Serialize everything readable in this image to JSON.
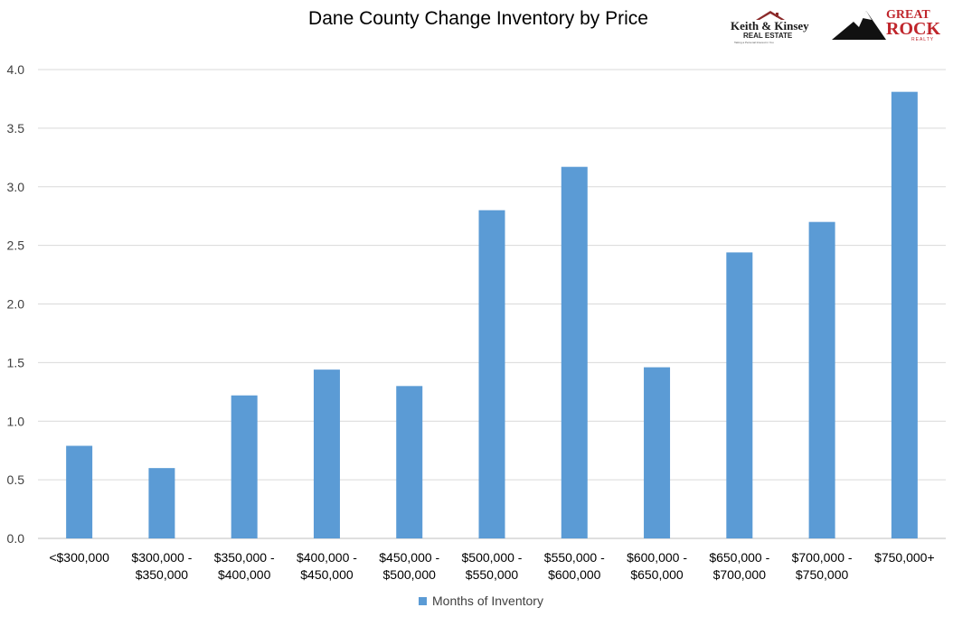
{
  "chart_data": {
    "type": "bar",
    "title": "Dane County Change Inventory by Price",
    "xlabel": "",
    "ylabel": "",
    "categories": [
      [
        "<$300,000"
      ],
      [
        "$300,000 -",
        "$350,000"
      ],
      [
        "$350,000 -",
        "$400,000"
      ],
      [
        "$400,000 -",
        "$450,000"
      ],
      [
        "$450,000 -",
        "$500,000"
      ],
      [
        "$500,000 -",
        "$550,000"
      ],
      [
        "$550,000 -",
        "$600,000"
      ],
      [
        "$600,000 -",
        "$650,000"
      ],
      [
        "$650,000 -",
        "$700,000"
      ],
      [
        "$700,000 -",
        "$750,000"
      ],
      [
        "$750,000+"
      ]
    ],
    "series": [
      {
        "name": "Months of Inventory",
        "color": "#5b9bd5",
        "values": [
          0.79,
          0.6,
          1.22,
          1.44,
          1.3,
          2.8,
          3.17,
          1.46,
          2.44,
          2.7,
          3.81
        ]
      }
    ],
    "ylim": [
      0,
      4.0
    ],
    "yticks": [
      "0.0",
      "0.5",
      "1.0",
      "1.5",
      "2.0",
      "2.5",
      "3.0",
      "3.5",
      "4.0"
    ],
    "grid": true,
    "legend_position": "bottom"
  },
  "logos": {
    "keith_kinsey": {
      "name": "Keith & Kinsey",
      "sub": "REAL ESTATE",
      "tagline": "Taking a Personal Interest in You"
    },
    "great_rock": {
      "line1": "GREAT",
      "line2": "ROCK",
      "line3": "REALTY"
    }
  },
  "colors": {
    "bar": "#5b9bd5",
    "grid": "#d9d9d9",
    "axis_text": "#404040",
    "logo_red": "#c0262c"
  }
}
